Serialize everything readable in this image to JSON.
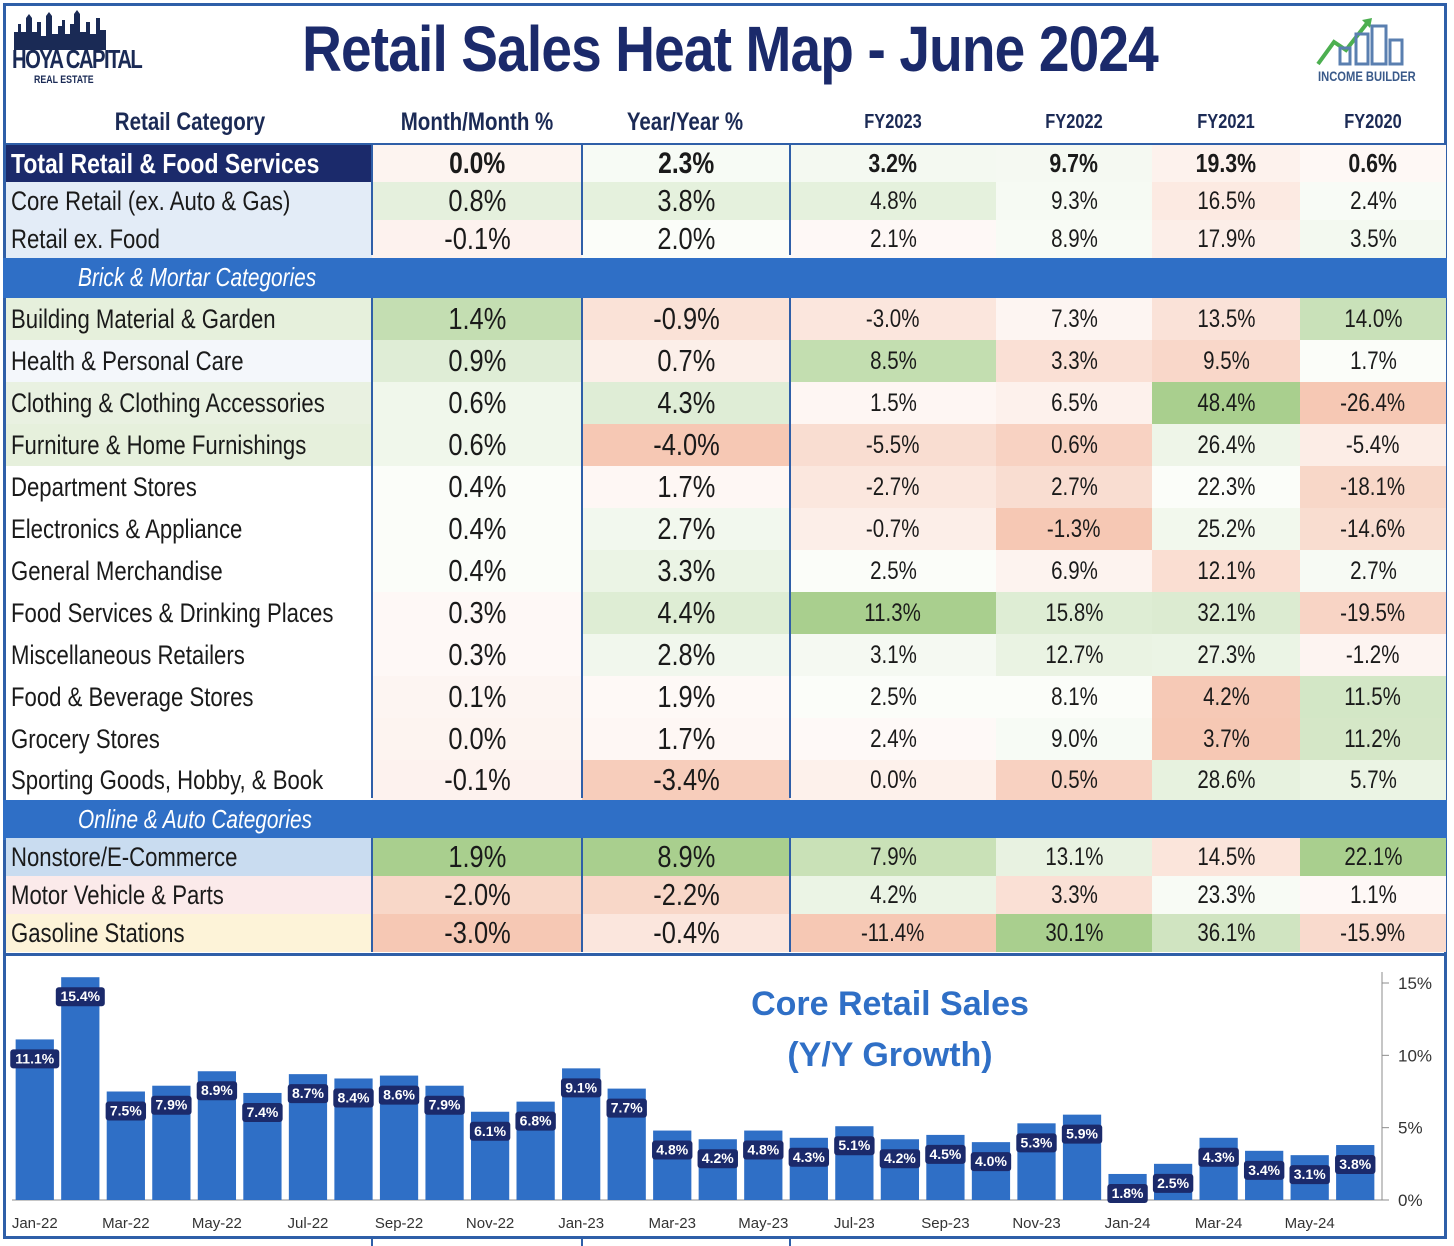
{
  "header": {
    "logo_left_name": "HOYA CAPITAL",
    "logo_left_sub": "REAL ESTATE",
    "title": "Retail Sales Heat Map -  June 2024",
    "logo_right_label": "INCOME BUILDER"
  },
  "columns": [
    "Retail Category",
    "Month/Month %",
    "Year/Year %",
    "FY2023",
    "FY2022",
    "FY2021",
    "FY2020"
  ],
  "sections": {
    "brick": "Brick & Mortar Categories",
    "online": "Online & Auto Categories"
  },
  "rows": [
    {
      "label": "Total Retail & Food Services",
      "values": [
        "0.0%",
        "2.3%",
        "3.2%",
        "9.7%",
        "19.3%",
        "0.6%"
      ]
    },
    {
      "label": "Core Retail (ex. Auto & Gas)",
      "values": [
        "0.8%",
        "3.8%",
        "4.8%",
        "9.3%",
        "16.5%",
        "2.4%"
      ]
    },
    {
      "label": "Retail ex. Food",
      "values": [
        "-0.1%",
        "2.0%",
        "2.1%",
        "8.9%",
        "17.9%",
        "3.5%"
      ]
    },
    {
      "label": "Building Material & Garden",
      "values": [
        "1.4%",
        "-0.9%",
        "-3.0%",
        "7.3%",
        "13.5%",
        "14.0%"
      ]
    },
    {
      "label": "Health & Personal Care",
      "values": [
        "0.9%",
        "0.7%",
        "8.5%",
        "3.3%",
        "9.5%",
        "1.7%"
      ]
    },
    {
      "label": "Clothing & Clothing Accessories",
      "values": [
        "0.6%",
        "4.3%",
        "1.5%",
        "6.5%",
        "48.4%",
        "-26.4%"
      ]
    },
    {
      "label": "Furniture & Home Furnishings",
      "values": [
        "0.6%",
        "-4.0%",
        "-5.5%",
        "0.6%",
        "26.4%",
        "-5.4%"
      ]
    },
    {
      "label": "Department Stores",
      "values": [
        "0.4%",
        "1.7%",
        "-2.7%",
        "2.7%",
        "22.3%",
        "-18.1%"
      ]
    },
    {
      "label": "Electronics & Appliance",
      "values": [
        "0.4%",
        "2.7%",
        "-0.7%",
        "-1.3%",
        "25.2%",
        "-14.6%"
      ]
    },
    {
      "label": "General Merchandise",
      "values": [
        "0.4%",
        "3.3%",
        "2.5%",
        "6.9%",
        "12.1%",
        "2.7%"
      ]
    },
    {
      "label": "Food Services & Drinking Places",
      "values": [
        "0.3%",
        "4.4%",
        "11.3%",
        "15.8%",
        "32.1%",
        "-19.5%"
      ]
    },
    {
      "label": "Miscellaneous Retailers",
      "values": [
        "0.3%",
        "2.8%",
        "3.1%",
        "12.7%",
        "27.3%",
        "-1.2%"
      ]
    },
    {
      "label": "Food & Beverage Stores",
      "values": [
        "0.1%",
        "1.9%",
        "2.5%",
        "8.1%",
        "4.2%",
        "11.5%"
      ]
    },
    {
      "label": "Grocery Stores",
      "values": [
        "0.0%",
        "1.7%",
        "2.4%",
        "9.0%",
        "3.7%",
        "11.2%"
      ]
    },
    {
      "label": "Sporting Goods, Hobby, & Book",
      "values": [
        "-0.1%",
        "-3.4%",
        "0.0%",
        "0.5%",
        "28.6%",
        "5.7%"
      ]
    },
    {
      "label": "Nonstore/E-Commerce",
      "values": [
        "1.9%",
        "8.9%",
        "7.9%",
        "13.1%",
        "14.5%",
        "22.1%"
      ]
    },
    {
      "label": "Motor Vehicle & Parts",
      "values": [
        "-2.0%",
        "-2.2%",
        "4.2%",
        "3.3%",
        "23.3%",
        "1.1%"
      ]
    },
    {
      "label": "Gasoline Stations",
      "values": [
        "-3.0%",
        "-0.4%",
        "-11.4%",
        "30.1%",
        "36.1%",
        "-15.9%"
      ]
    }
  ],
  "colors": {
    "navy": "#1b2a6b",
    "section_blue": "#2f6fc6",
    "bar_blue": "#2f6fc6",
    "green_max": "#a9cf8e",
    "red_max": "#f6c8b4",
    "neutral": "#ffffff"
  },
  "chart_data": {
    "type": "bar",
    "title": "Core Retail Sales",
    "subtitle": "(Y/Y Growth)",
    "categories": [
      "Jan-22",
      "Feb-22",
      "Mar-22",
      "Apr-22",
      "May-22",
      "Jun-22",
      "Jul-22",
      "Aug-22",
      "Sep-22",
      "Oct-22",
      "Nov-22",
      "Dec-22",
      "Jan-23",
      "Feb-23",
      "Mar-23",
      "Apr-23",
      "May-23",
      "Jun-23",
      "Jul-23",
      "Aug-23",
      "Sep-23",
      "Oct-23",
      "Nov-23",
      "Dec-23",
      "Jan-24",
      "Feb-24",
      "Mar-24",
      "Apr-24",
      "May-24",
      "Jun-24"
    ],
    "tick_labels": [
      "Jan-22",
      "Mar-22",
      "May-22",
      "Jul-22",
      "Sep-22",
      "Nov-22",
      "Jan-23",
      "Mar-23",
      "May-23",
      "Jul-23",
      "Sep-23",
      "Nov-23",
      "Jan-24",
      "Mar-24",
      "May-24"
    ],
    "values": [
      11.1,
      15.4,
      7.5,
      7.9,
      8.9,
      7.4,
      8.7,
      8.4,
      8.6,
      7.9,
      6.1,
      6.8,
      9.1,
      7.7,
      4.8,
      4.2,
      4.8,
      4.3,
      5.1,
      4.2,
      4.5,
      4.0,
      5.3,
      5.9,
      1.8,
      2.5,
      4.3,
      3.4,
      3.1,
      3.8
    ],
    "data_labels": [
      "11.1%",
      "15.4%",
      "7.5%",
      "7.9%",
      "8.9%",
      "7.4%",
      "8.7%",
      "8.4%",
      "8.6%",
      "7.9%",
      "6.1%",
      "6.8%",
      "9.1%",
      "7.7%",
      "4.8%",
      "4.2%",
      "4.8%",
      "4.3%",
      "5.1%",
      "4.2%",
      "4.5%",
      "4.0%",
      "5.3%",
      "5.9%",
      "1.8%",
      "2.5%",
      "4.3%",
      "3.4%",
      "3.1%",
      "3.8%"
    ],
    "yticks": [
      "0%",
      "5%",
      "10%",
      "15%"
    ],
    "ylim": [
      0,
      16
    ],
    "y_axis_side": "right",
    "grid": false
  }
}
